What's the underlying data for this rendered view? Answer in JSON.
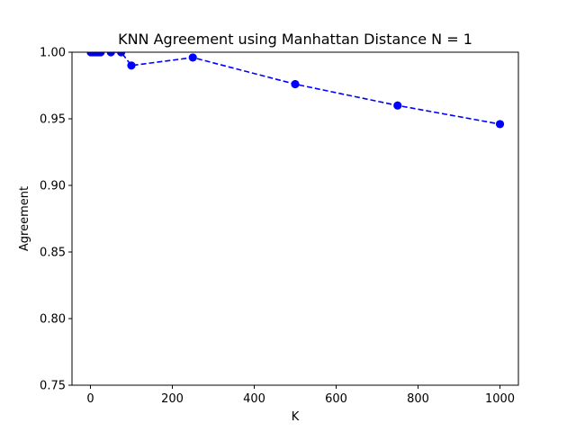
{
  "chart_data": {
    "type": "line",
    "title": "KNN Agreement using Manhattan Distance N = 1",
    "xlabel": "K",
    "ylabel": "Agreement",
    "xlim": [
      -45,
      1045
    ],
    "ylim": [
      0.75,
      1.0
    ],
    "x_ticks": [
      0,
      200,
      400,
      600,
      800,
      1000
    ],
    "y_ticks": [
      0.75,
      0.8,
      0.85,
      0.9,
      0.95,
      1.0
    ],
    "x_tick_labels": [
      "0",
      "200",
      "400",
      "600",
      "800",
      "1000"
    ],
    "y_tick_labels": [
      "0.75",
      "0.80",
      "0.85",
      "0.90",
      "0.95",
      "1.00"
    ],
    "grid": false,
    "series": [
      {
        "name": "Agreement",
        "color": "#0000ff",
        "line_style": "dashed",
        "marker": "circle",
        "x": [
          1,
          5,
          10,
          15,
          20,
          25,
          50,
          75,
          100,
          250,
          500,
          750,
          1000
        ],
        "y": [
          1.0,
          1.0,
          1.0,
          1.0,
          1.0,
          1.0,
          1.0,
          1.0,
          0.99,
          0.996,
          0.976,
          0.96,
          0.946
        ]
      }
    ]
  }
}
